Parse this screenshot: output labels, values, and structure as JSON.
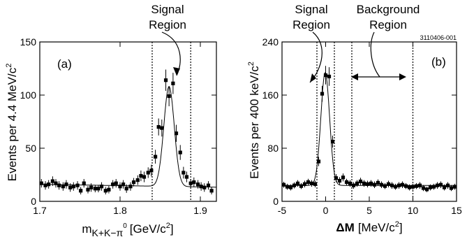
{
  "chart_data": [
    {
      "type": "scatter",
      "panel_label": "(a)",
      "xlabel_main": "m",
      "xlabel_sub": "K+K−π",
      "xlabel_sup": "0",
      "xlabel_unit": "[GeV/c",
      "xlabel_unit_sup": "2",
      "xlabel_unit_end": "]",
      "ylabel": "Events per 4.4 MeV/c",
      "ylabel_sup": "2",
      "xlim": [
        1.7,
        1.92
      ],
      "ylim": [
        0,
        150
      ],
      "xticks": [
        "1.7",
        "1.8",
        "1.9"
      ],
      "yticks": [
        "0",
        "50",
        "100",
        "150"
      ],
      "cut_lines": [
        1.84,
        1.888
      ],
      "annotation": [
        "Signal",
        "Region"
      ],
      "x": [
        1.702,
        1.707,
        1.711,
        1.716,
        1.72,
        1.724,
        1.729,
        1.733,
        1.738,
        1.742,
        1.747,
        1.751,
        1.755,
        1.76,
        1.764,
        1.769,
        1.773,
        1.777,
        1.782,
        1.786,
        1.791,
        1.795,
        1.8,
        1.804,
        1.808,
        1.813,
        1.817,
        1.822,
        1.826,
        1.83,
        1.835,
        1.839,
        1.844,
        1.848,
        1.852,
        1.857,
        1.861,
        1.866,
        1.87,
        1.875,
        1.879,
        1.883,
        1.888,
        1.892,
        1.897,
        1.901,
        1.905,
        1.91,
        1.914
      ],
      "y": [
        17,
        15,
        16,
        19,
        17,
        15,
        14,
        16,
        13,
        14,
        15,
        10,
        17,
        11,
        13,
        12,
        12,
        14,
        10,
        11,
        16,
        17,
        14,
        16,
        12,
        14,
        18,
        20,
        24,
        23,
        27,
        29,
        42,
        70,
        69,
        114,
        99,
        111,
        64,
        46,
        27,
        23,
        17,
        18,
        16,
        14,
        13,
        15,
        10
      ],
      "err": [
        4,
        4,
        4,
        4.5,
        4,
        4,
        4,
        4,
        4,
        4,
        4,
        3.5,
        4,
        3.5,
        4,
        3.5,
        3.5,
        4,
        3.5,
        3.5,
        4,
        4,
        4,
        4,
        4,
        4,
        4,
        4.5,
        5,
        5,
        5,
        5.5,
        6.5,
        8,
        8,
        10,
        9.5,
        10,
        8,
        7,
        5.5,
        5,
        4,
        4.5,
        4,
        4,
        4,
        4,
        3.5
      ],
      "fit": {
        "background": 16,
        "slope": -12,
        "peak_x": 1.861,
        "amplitude": 94,
        "sigma": 0.0065
      }
    },
    {
      "type": "scatter",
      "panel_label": "(b)",
      "xlabel_main": "ΔM",
      "xlabel_unit": "[MeV/c",
      "xlabel_unit_sup": "2",
      "xlabel_unit_end": "]",
      "ylabel": "Events per 400 keV/c",
      "ylabel_sup": "2",
      "xlim": [
        -5,
        15
      ],
      "ylim": [
        0,
        240
      ],
      "xticks": [
        "-5",
        "0",
        "5",
        "10",
        "15"
      ],
      "yticks": [
        "0",
        "80",
        "160",
        "240"
      ],
      "cut_lines": [
        -1,
        1,
        3,
        10
      ],
      "annotation_signal": [
        "Signal",
        "Region"
      ],
      "annotation_background": [
        "Background",
        "Region"
      ],
      "figure_code": "3110406-001",
      "x": [
        -4.8,
        -4.4,
        -4,
        -3.6,
        -3.2,
        -2.8,
        -2.4,
        -2,
        -1.6,
        -1.2,
        -0.8,
        -0.4,
        0,
        0.4,
        0.8,
        1.2,
        1.6,
        2,
        2.4,
        2.8,
        3.2,
        3.6,
        4,
        4.4,
        4.8,
        5.2,
        5.6,
        6,
        6.4,
        6.8,
        7.2,
        7.6,
        8,
        8.4,
        8.8,
        9.2,
        9.6,
        10,
        10.4,
        10.8,
        11.2,
        11.6,
        12,
        12.4,
        12.8,
        13.2,
        13.6,
        14,
        14.4,
        14.8
      ],
      "y": [
        25,
        22,
        21,
        24,
        27,
        23,
        26,
        29,
        27,
        26,
        60,
        162,
        190,
        188,
        90,
        35,
        31,
        36,
        29,
        27,
        24,
        27,
        30,
        27,
        26,
        27,
        25,
        28,
        25,
        23,
        26,
        24,
        22,
        24,
        25,
        23,
        21,
        22,
        23,
        24,
        20,
        18,
        21,
        22,
        24,
        25,
        21,
        24,
        20,
        22
      ],
      "err": [
        4.5,
        4.5,
        4.5,
        4.5,
        5,
        4.5,
        5,
        5,
        5,
        5,
        7,
        12,
        14,
        14,
        9,
        6,
        5.5,
        6,
        5,
        5,
        5,
        5,
        5.5,
        5,
        5,
        5,
        5,
        5,
        5,
        4.5,
        5,
        5,
        4.5,
        5,
        5,
        4.5,
        4.5,
        4.5,
        4.5,
        5,
        4.5,
        4,
        4.5,
        4.5,
        5,
        5,
        4.5,
        5,
        4.5,
        4.5
      ],
      "fit": {
        "background": 24,
        "peak_x": -0.05,
        "amplitude": 170,
        "sigma": 0.5
      }
    }
  ]
}
